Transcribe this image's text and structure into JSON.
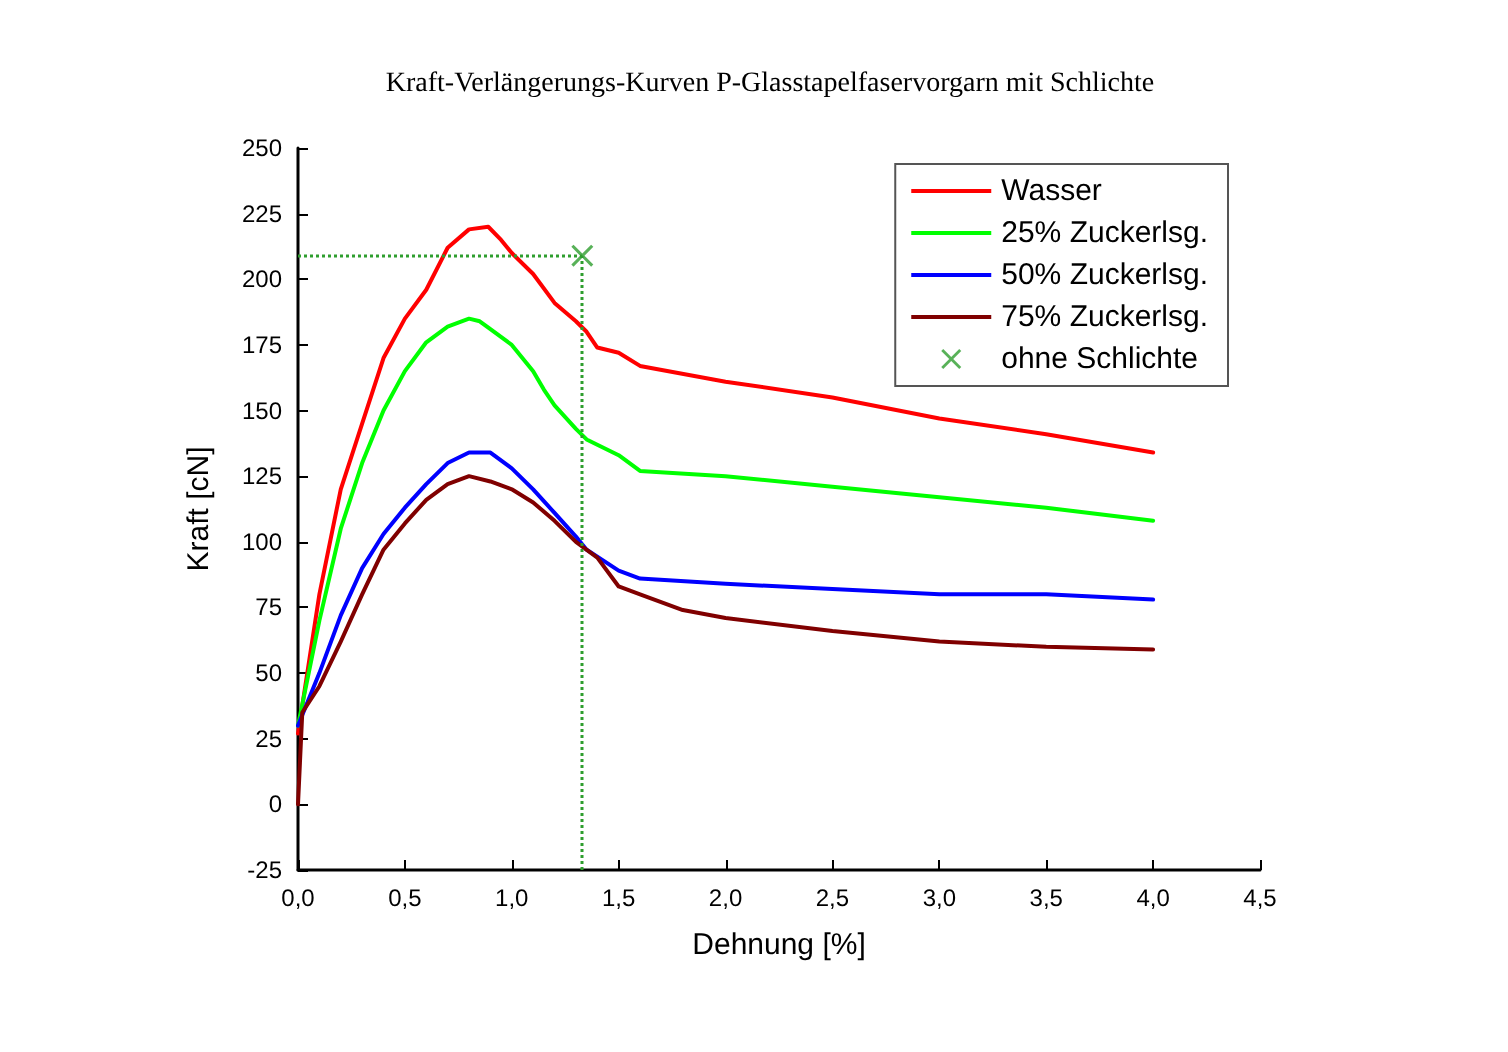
{
  "chart_data": {
    "type": "line",
    "title": "Kraft-Verlängerungs-Kurven P-Glasstapelfaservorgarn mit Schlichte",
    "xlabel": "Dehnung [%]",
    "ylabel": "Kraft [cN]",
    "xlim": [
      0,
      4.5
    ],
    "xticks": [
      {
        "value": 0,
        "label": "0,0"
      },
      {
        "value": 0.5,
        "label": "0,5"
      },
      {
        "value": 1,
        "label": "1,0"
      },
      {
        "value": 1.5,
        "label": "1,5"
      },
      {
        "value": 2,
        "label": "2,0"
      },
      {
        "value": 2.5,
        "label": "2,5"
      },
      {
        "value": 3,
        "label": "3,0"
      },
      {
        "value": 3.5,
        "label": "3,5"
      },
      {
        "value": 4,
        "label": "4,0"
      },
      {
        "value": 4.5,
        "label": "4,5"
      }
    ],
    "ylim": [
      -25,
      250
    ],
    "yticks": [
      -25,
      0,
      25,
      50,
      75,
      100,
      125,
      150,
      175,
      200,
      225,
      250
    ],
    "grid": false,
    "legend": "top right",
    "marker": "none",
    "line_style": "solid",
    "series": [
      {
        "name": "Wasser",
        "color": "#ff0000",
        "x": [
          0,
          0.1,
          0.2,
          0.3,
          0.4,
          0.5,
          0.6,
          0.7,
          0.8,
          0.89,
          0.95,
          1.0,
          1.1,
          1.2,
          1.3,
          1.35,
          1.4,
          1.5,
          1.6,
          2.0,
          2.5,
          3.0,
          3.5,
          4.0
        ],
        "values": [
          27,
          80,
          120,
          145,
          170,
          185,
          196,
          212,
          219,
          220,
          215,
          210,
          202,
          191,
          184,
          180,
          174,
          172,
          167,
          161,
          155,
          147,
          141,
          134
        ]
      },
      {
        "name": "25% Zuckerlsg.",
        "color": "#00ff00",
        "x": [
          0,
          0.1,
          0.2,
          0.3,
          0.4,
          0.5,
          0.6,
          0.7,
          0.8,
          0.85,
          0.9,
          1.0,
          1.1,
          1.15,
          1.2,
          1.3,
          1.35,
          1.5,
          1.6,
          2.0,
          2.5,
          3.0,
          3.5,
          4.0
        ],
        "values": [
          30,
          70,
          105,
          130,
          150,
          165,
          176,
          182,
          185,
          184,
          181,
          175,
          165,
          158,
          152,
          143,
          139,
          133,
          127,
          125,
          121,
          117,
          113,
          108
        ]
      },
      {
        "name": "50% Zuckerlsg.",
        "color": "#0000ff",
        "x": [
          0,
          0.1,
          0.2,
          0.3,
          0.4,
          0.5,
          0.6,
          0.7,
          0.8,
          0.9,
          1.0,
          1.1,
          1.2,
          1.3,
          1.35,
          1.5,
          1.6,
          2.0,
          2.5,
          3.0,
          3.5,
          4.0
        ],
        "values": [
          30,
          50,
          72,
          90,
          103,
          113,
          122,
          130,
          134,
          134,
          128,
          120,
          111,
          102,
          97,
          89,
          86,
          84,
          82,
          80,
          80,
          78
        ]
      },
      {
        "name": "75% Zuckerlsg.",
        "color": "#800000",
        "x": [
          0,
          0.02,
          0.1,
          0.2,
          0.3,
          0.4,
          0.5,
          0.6,
          0.7,
          0.8,
          0.9,
          1.0,
          1.1,
          1.2,
          1.3,
          1.4,
          1.5,
          1.6,
          1.8,
          2.0,
          2.5,
          3.0,
          3.5,
          4.0
        ],
        "values": [
          0,
          35,
          45,
          62,
          80,
          97,
          107,
          116,
          122,
          125,
          123,
          120,
          115,
          108,
          100,
          94,
          83,
          80,
          74,
          71,
          66,
          62,
          60,
          59
        ]
      },
      {
        "name": "ohne Schlichte",
        "type": "scatter",
        "marker": "cross",
        "color": "#2e9e2e",
        "x": [
          1.33
        ],
        "values": [
          209
        ]
      }
    ],
    "ref_lines": [
      {
        "axis": "x",
        "value": 1.33,
        "color": "#2e9e2e",
        "line_style": "dotted"
      },
      {
        "axis": "y",
        "value": 209,
        "color": "#2e9e2e",
        "line_style": "dotted"
      }
    ]
  }
}
